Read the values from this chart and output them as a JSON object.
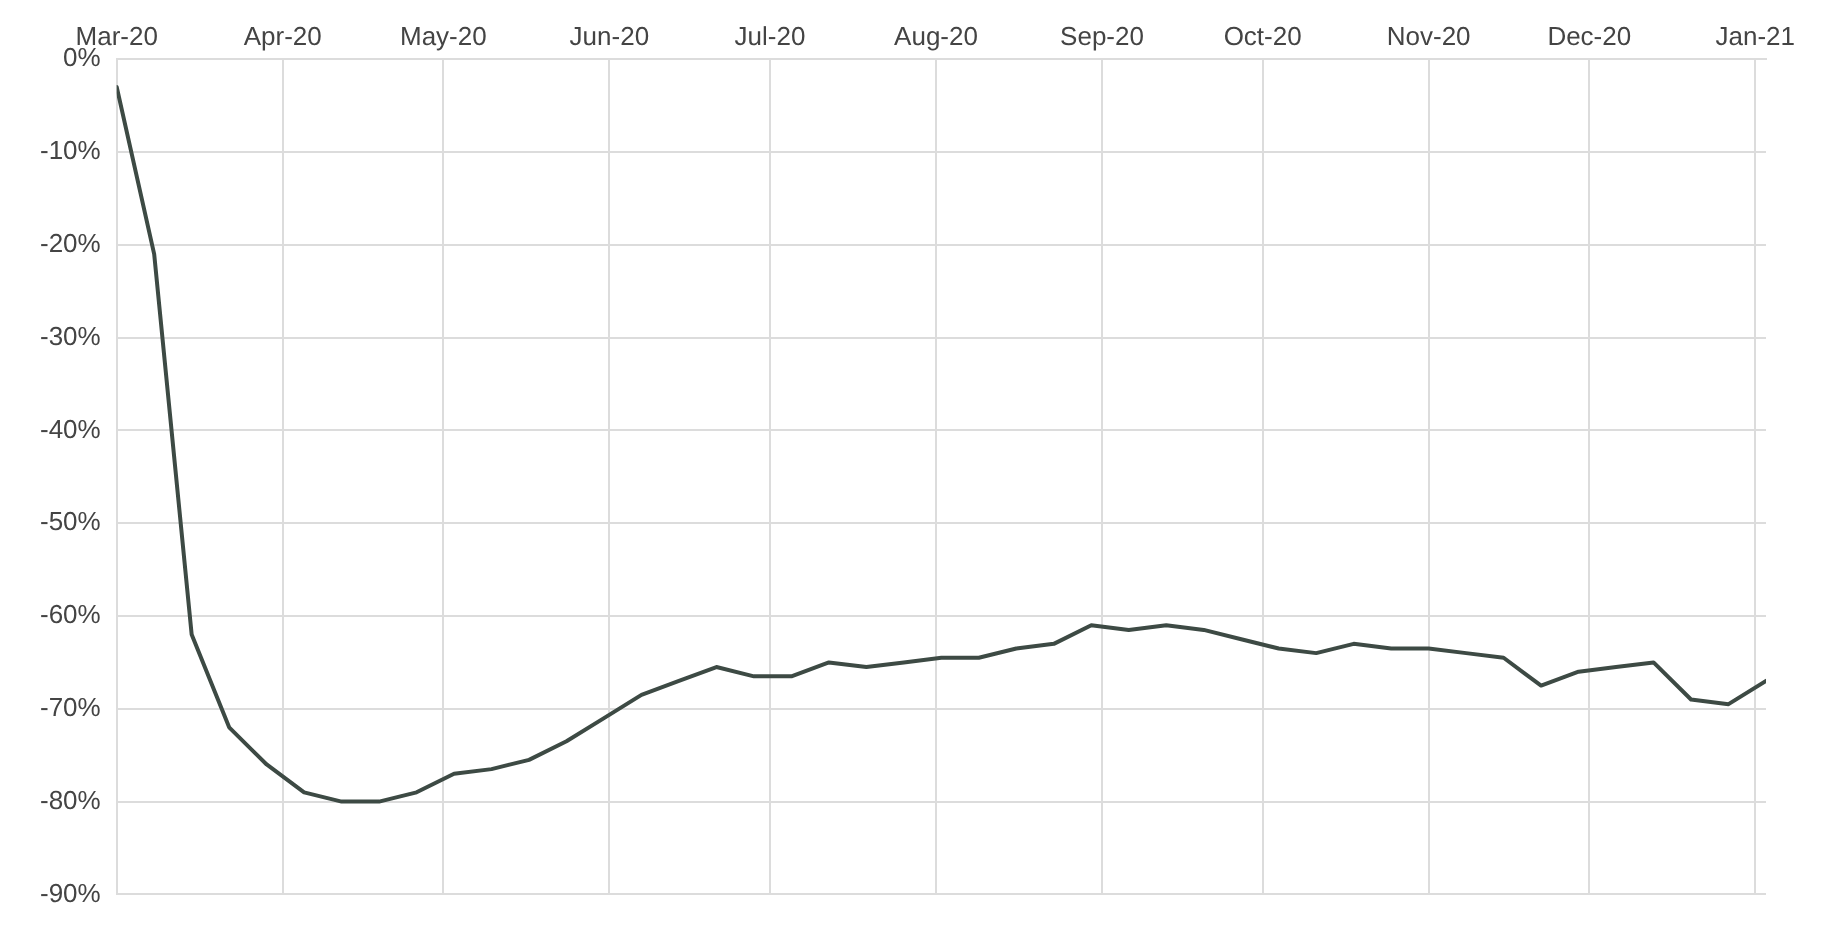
{
  "chart_data": {
    "type": "line",
    "x": [
      "2020-03-01",
      "2020-03-08",
      "2020-03-15",
      "2020-03-22",
      "2020-03-29",
      "2020-04-05",
      "2020-04-12",
      "2020-04-19",
      "2020-04-26",
      "2020-05-03",
      "2020-05-10",
      "2020-05-17",
      "2020-05-24",
      "2020-05-31",
      "2020-06-07",
      "2020-06-14",
      "2020-06-21",
      "2020-06-28",
      "2020-07-05",
      "2020-07-12",
      "2020-07-19",
      "2020-07-26",
      "2020-08-02",
      "2020-08-09",
      "2020-08-16",
      "2020-08-23",
      "2020-08-30",
      "2020-09-06",
      "2020-09-13",
      "2020-09-20",
      "2020-09-27",
      "2020-10-04",
      "2020-10-11",
      "2020-10-18",
      "2020-10-25",
      "2020-11-01",
      "2020-11-08",
      "2020-11-15",
      "2020-11-22",
      "2020-11-29",
      "2020-12-06",
      "2020-12-13",
      "2020-12-20",
      "2020-12-27",
      "2021-01-03"
    ],
    "series": [
      {
        "color": "#3d4a44",
        "values": [
          -3,
          -21,
          -62,
          -72,
          -76,
          -79,
          -80,
          -80,
          -79,
          -77,
          -76.5,
          -75.5,
          -73.5,
          -71,
          -68.5,
          -67,
          -65.5,
          -66.5,
          -66.5,
          -65,
          -65.5,
          -65,
          -64.5,
          -64.5,
          -63.5,
          -63,
          -61,
          -61.5,
          -61,
          -61.5,
          -62.5,
          -63.5,
          -64,
          -63,
          -63.5,
          -63.5,
          -64,
          -64.5,
          -67.5,
          -66,
          -65.5,
          -65,
          -69,
          -69.5,
          -67
        ]
      }
    ],
    "xlim": [
      "2020-03-01",
      "2021-01-03"
    ],
    "xticks": [
      {
        "value": "2020-03-01",
        "label": "Mar-20"
      },
      {
        "value": "2020-04-01",
        "label": "Apr-20"
      },
      {
        "value": "2020-05-01",
        "label": "May-20"
      },
      {
        "value": "2020-06-01",
        "label": "Jun-20"
      },
      {
        "value": "2020-07-01",
        "label": "Jul-20"
      },
      {
        "value": "2020-08-01",
        "label": "Aug-20"
      },
      {
        "value": "2020-09-01",
        "label": "Sep-20"
      },
      {
        "value": "2020-10-01",
        "label": "Oct-20"
      },
      {
        "value": "2020-11-01",
        "label": "Nov-20"
      },
      {
        "value": "2020-12-01",
        "label": "Dec-20"
      },
      {
        "value": "2021-01-01",
        "label": "Jan-21"
      }
    ],
    "ylim": [
      -90,
      0
    ],
    "yticks": [
      {
        "value": 0,
        "label": "0%"
      },
      {
        "value": -10,
        "label": "-10%"
      },
      {
        "value": -20,
        "label": "-20%"
      },
      {
        "value": -30,
        "label": "-30%"
      },
      {
        "value": -40,
        "label": "-40%"
      },
      {
        "value": -50,
        "label": "-50%"
      },
      {
        "value": -60,
        "label": "-60%"
      },
      {
        "value": -70,
        "label": "-70%"
      },
      {
        "value": -80,
        "label": "-80%"
      },
      {
        "value": -90,
        "label": "-90%"
      }
    ],
    "grid": true,
    "legend": false,
    "marker": "none",
    "line_style": "solid"
  }
}
